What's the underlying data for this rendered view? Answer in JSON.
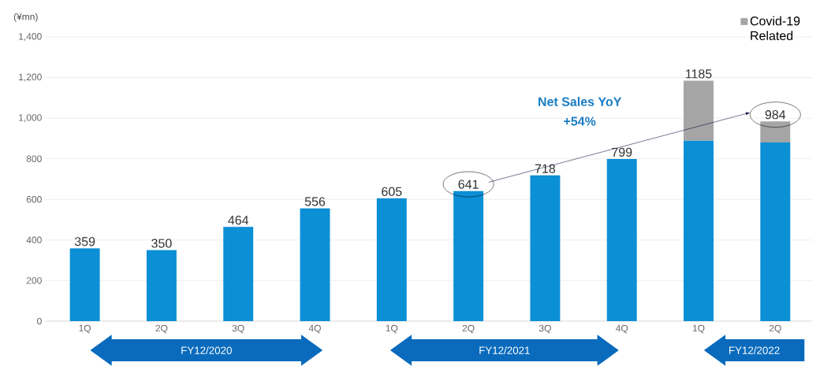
{
  "chart_data": {
    "type": "bar",
    "stacked": true,
    "ylabel": "(¥mn)",
    "categories": [
      "1Q",
      "2Q",
      "3Q",
      "4Q",
      "1Q",
      "2Q",
      "3Q",
      "4Q",
      "1Q",
      "2Q"
    ],
    "series": [
      {
        "color": "#0b8fd5",
        "values": [
          359,
          350,
          464,
          556,
          605,
          641,
          718,
          799,
          890,
          880
        ]
      },
      {
        "name": "Covid-19 Related",
        "color": "#a5a5a5",
        "values": [
          null,
          null,
          null,
          null,
          null,
          null,
          null,
          null,
          295,
          104
        ]
      }
    ],
    "totals": [
      "359",
      "350",
      "464",
      "556",
      "605",
      "641",
      "718",
      "799",
      "1185",
      "984"
    ],
    "ylim": [
      0,
      1400
    ],
    "yticks": [
      {
        "value": 0,
        "label": "0"
      },
      {
        "value": 200,
        "label": "200"
      },
      {
        "value": 400,
        "label": "400"
      },
      {
        "value": 600,
        "label": "600"
      },
      {
        "value": 800,
        "label": "800"
      },
      {
        "value": 1000,
        "label": "1,000"
      },
      {
        "value": 1200,
        "label": "1,200"
      },
      {
        "value": 1400,
        "label": "1,400"
      }
    ],
    "grid": "y",
    "legend": "top right",
    "annotations": [
      "FY12/2020",
      "FY12/2021",
      "FY12/2022",
      "Net Sales YoY",
      "+54%"
    ]
  }
}
